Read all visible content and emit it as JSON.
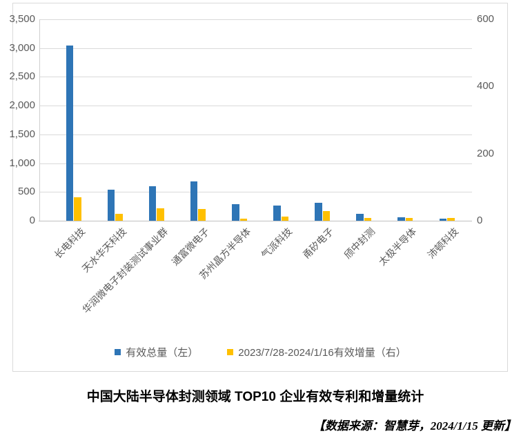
{
  "title": "中国大陆半导体封测领域 TOP10 企业有效专利和增量统计",
  "source_note": "【数据来源：智慧芽，2024/1/15 更新】",
  "colors": {
    "series_blue": "#2E75B6",
    "series_yellow": "#FFC000",
    "gridline": "#D9D9D9",
    "axis_text": "#595959",
    "frame_border": "#D9D9D9"
  },
  "chart_data": {
    "type": "bar",
    "categories": [
      "长电科技",
      "天水华天科技",
      "华润微电子封装测试事业群",
      "通富微电子",
      "苏州晶方半导体",
      "气派科技",
      "甬矽电子",
      "颀中封测",
      "太极半导体",
      "沛顿科技"
    ],
    "series": [
      {
        "name": "有效总量（左）",
        "axis": "left",
        "color": "#2E75B6",
        "values": [
          3040,
          545,
          605,
          688,
          288,
          262,
          314,
          115,
          60,
          33
        ]
      },
      {
        "name": "2023/7/28-2024/1/16有效增量（右）",
        "axis": "right",
        "color": "#FFC000",
        "values": [
          70,
          20,
          38,
          34,
          7,
          12,
          28,
          8,
          8,
          9
        ]
      }
    ],
    "left_axis": {
      "min": 0,
      "max": 3500,
      "step": 500,
      "tick_labels": [
        "3,500",
        "3,000",
        "2,500",
        "2,000",
        "1,500",
        "1,000",
        "500",
        "0"
      ]
    },
    "right_axis": {
      "min": 0,
      "max": 600,
      "step": 200,
      "tick_labels": [
        "600",
        "400",
        "200",
        "0"
      ]
    },
    "grid": true,
    "legend_position": "bottom"
  }
}
